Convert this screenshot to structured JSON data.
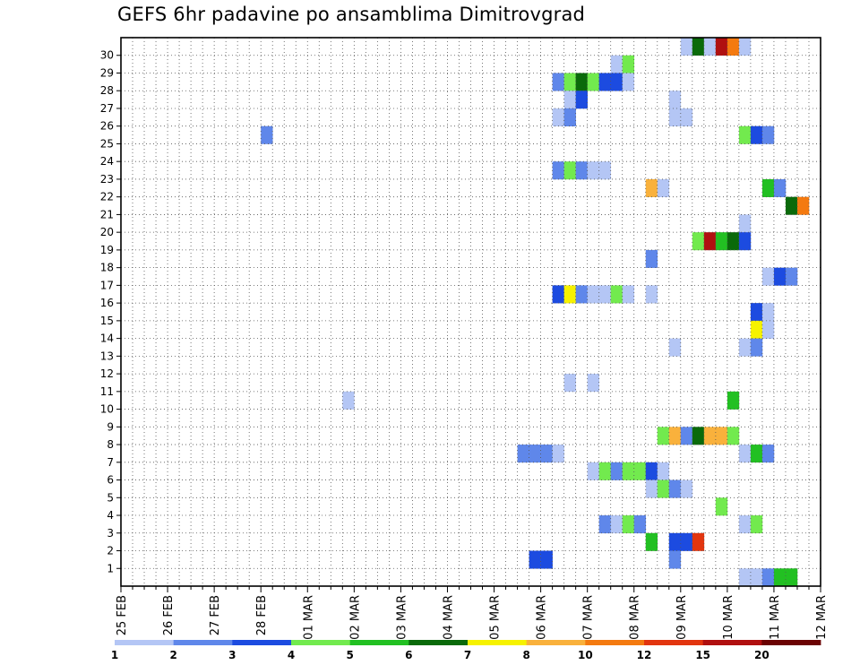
{
  "chart_data": {
    "type": "heatmap",
    "title": "GEFS 6hr padavine po ansamblima Dimitrovgrad",
    "xlabel": "",
    "ylabel": "",
    "grid": true,
    "x_axis": {
      "labels": [
        "25 FEB",
        "26 FEB",
        "27 FEB",
        "28 FEB",
        "01 MAR",
        "02 MAR",
        "03 MAR",
        "04 MAR",
        "05 MAR",
        "06 MAR",
        "07 MAR",
        "08 MAR",
        "09 MAR",
        "10 MAR",
        "11 MAR",
        "12 MAR"
      ],
      "steps_per_day": 4,
      "total_steps": 60
    },
    "y_axis": {
      "labels": [
        "1",
        "2",
        "3",
        "4",
        "5",
        "6",
        "7",
        "8",
        "9",
        "10",
        "11",
        "12",
        "13",
        "14",
        "15",
        "16",
        "17",
        "18",
        "19",
        "20",
        "21",
        "22",
        "23",
        "24",
        "25",
        "26",
        "27",
        "28",
        "29",
        "30"
      ],
      "rows": 31
    },
    "legend": {
      "placement": "bottom",
      "labels": [
        "1",
        "2",
        "3",
        "4",
        "5",
        "6",
        "7",
        "8",
        "10",
        "12",
        "15",
        "20"
      ],
      "colors": [
        "#b4c6f5",
        "#5f87ea",
        "#1c4be0",
        "#72ea4e",
        "#22c022",
        "#0a6a0a",
        "#f6f200",
        "#f9b13c",
        "#f47a10",
        "#e2350f",
        "#b01010",
        "#6b0303"
      ]
    },
    "cells": [
      [
        30,
        48,
        0
      ],
      [
        30,
        49,
        5
      ],
      [
        30,
        50,
        0
      ],
      [
        30,
        51,
        10
      ],
      [
        30,
        52,
        8
      ],
      [
        30,
        53,
        0
      ],
      [
        29,
        42,
        0
      ],
      [
        29,
        43,
        3
      ],
      [
        28,
        37,
        1
      ],
      [
        28,
        38,
        3
      ],
      [
        28,
        39,
        5
      ],
      [
        28,
        40,
        3
      ],
      [
        28,
        41,
        2
      ],
      [
        28,
        42,
        2
      ],
      [
        28,
        43,
        0
      ],
      [
        27,
        38,
        0
      ],
      [
        27,
        39,
        2
      ],
      [
        27,
        47,
        0
      ],
      [
        26,
        37,
        0
      ],
      [
        26,
        38,
        1
      ],
      [
        26,
        47,
        0
      ],
      [
        26,
        48,
        0
      ],
      [
        25,
        12,
        1
      ],
      [
        25,
        53,
        3
      ],
      [
        25,
        54,
        2
      ],
      [
        25,
        55,
        1
      ],
      [
        23,
        37,
        1
      ],
      [
        23,
        38,
        3
      ],
      [
        23,
        39,
        1
      ],
      [
        23,
        40,
        0
      ],
      [
        23,
        41,
        0
      ],
      [
        22,
        45,
        7
      ],
      [
        22,
        46,
        0
      ],
      [
        22,
        55,
        4
      ],
      [
        22,
        56,
        1
      ],
      [
        21,
        57,
        5
      ],
      [
        21,
        58,
        8
      ],
      [
        20,
        53,
        0
      ],
      [
        19,
        49,
        3
      ],
      [
        19,
        50,
        10
      ],
      [
        19,
        51,
        4
      ],
      [
        19,
        52,
        5
      ],
      [
        19,
        53,
        2
      ],
      [
        18,
        45,
        1
      ],
      [
        17,
        55,
        0
      ],
      [
        17,
        56,
        2
      ],
      [
        17,
        57,
        1
      ],
      [
        16,
        37,
        2
      ],
      [
        16,
        38,
        6
      ],
      [
        16,
        39,
        1
      ],
      [
        16,
        40,
        0
      ],
      [
        16,
        41,
        0
      ],
      [
        16,
        42,
        3
      ],
      [
        16,
        43,
        0
      ],
      [
        16,
        45,
        0
      ],
      [
        15,
        54,
        2
      ],
      [
        15,
        55,
        0
      ],
      [
        14,
        54,
        6
      ],
      [
        14,
        55,
        0
      ],
      [
        13,
        47,
        0
      ],
      [
        13,
        53,
        0
      ],
      [
        13,
        54,
        1
      ],
      [
        11,
        38,
        0
      ],
      [
        11,
        40,
        0
      ],
      [
        10,
        19,
        0
      ],
      [
        10,
        52,
        4
      ],
      [
        8,
        46,
        3
      ],
      [
        8,
        47,
        7
      ],
      [
        8,
        48,
        1
      ],
      [
        8,
        49,
        5
      ],
      [
        8,
        50,
        7
      ],
      [
        8,
        51,
        7
      ],
      [
        8,
        52,
        3
      ],
      [
        7,
        34,
        1
      ],
      [
        7,
        35,
        1
      ],
      [
        7,
        36,
        1
      ],
      [
        7,
        37,
        0
      ],
      [
        7,
        53,
        0
      ],
      [
        7,
        54,
        4
      ],
      [
        7,
        55,
        1
      ],
      [
        6,
        40,
        0
      ],
      [
        6,
        41,
        3
      ],
      [
        6,
        42,
        1
      ],
      [
        6,
        43,
        3
      ],
      [
        6,
        44,
        3
      ],
      [
        6,
        45,
        2
      ],
      [
        6,
        46,
        0
      ],
      [
        5,
        45,
        0
      ],
      [
        5,
        46,
        3
      ],
      [
        5,
        47,
        1
      ],
      [
        5,
        48,
        0
      ],
      [
        4,
        51,
        3
      ],
      [
        3,
        41,
        1
      ],
      [
        3,
        42,
        0
      ],
      [
        3,
        43,
        3
      ],
      [
        3,
        44,
        1
      ],
      [
        3,
        53,
        0
      ],
      [
        3,
        54,
        3
      ],
      [
        2,
        45,
        4
      ],
      [
        2,
        47,
        2
      ],
      [
        2,
        48,
        2
      ],
      [
        2,
        49,
        9
      ],
      [
        1,
        35,
        2
      ],
      [
        1,
        36,
        2
      ],
      [
        1,
        47,
        1
      ],
      [
        0,
        53,
        0
      ],
      [
        0,
        54,
        0
      ],
      [
        0,
        55,
        1
      ],
      [
        0,
        56,
        4
      ],
      [
        0,
        57,
        4
      ]
    ]
  }
}
